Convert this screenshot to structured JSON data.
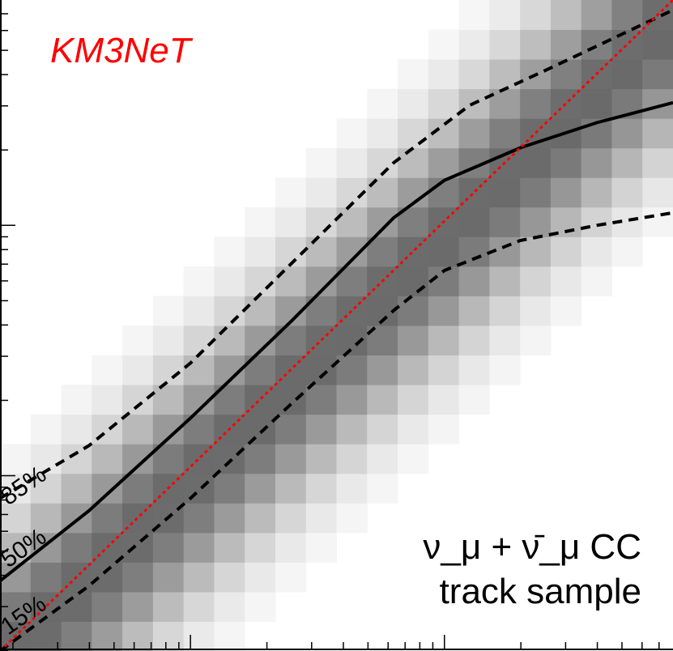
{
  "chart_data": {
    "type": "heatmap",
    "title": "",
    "xlabel": "",
    "ylabel": "",
    "x_scale": "log",
    "y_scale": "log",
    "xlim_log10": [
      0.25,
      2.9
    ],
    "ylim_log10": [
      0.3,
      2.9
    ],
    "heatmap": {
      "description": "2D histogram of reconstructed vs true energy, grayscale intensity 0-1",
      "n_bins_x": 22,
      "n_bins_y": 22,
      "peak_slope": 0.97,
      "peak_offset_log10": 0.01,
      "width_log10": 0.33
    },
    "series": [
      {
        "name": "85%",
        "style": "dashed",
        "color": "#000000",
        "x_log10": [
          0.25,
          0.6,
          1.0,
          1.4,
          1.8,
          2.1,
          2.4,
          2.9
        ],
        "y_log10": [
          0.91,
          1.12,
          1.45,
          1.85,
          2.25,
          2.48,
          2.62,
          2.86
        ]
      },
      {
        "name": "50%",
        "style": "solid",
        "color": "#000000",
        "x_log10": [
          0.25,
          0.6,
          1.0,
          1.4,
          1.8,
          2.0,
          2.3,
          2.6,
          2.9
        ],
        "y_log10": [
          0.58,
          0.86,
          1.23,
          1.62,
          2.03,
          2.18,
          2.31,
          2.41,
          2.49
        ]
      },
      {
        "name": "15%",
        "style": "dashed",
        "color": "#000000",
        "x_log10": [
          0.25,
          0.6,
          1.0,
          1.4,
          1.8,
          2.0,
          2.3,
          2.6,
          2.9
        ],
        "y_log10": [
          0.3,
          0.56,
          0.91,
          1.29,
          1.66,
          1.82,
          1.94,
          2.0,
          2.05
        ]
      },
      {
        "name": "diagonal",
        "style": "dotted",
        "color": "#ff0000",
        "x_log10": [
          0.25,
          2.9
        ],
        "y_log10": [
          0.3,
          2.9
        ]
      }
    ],
    "contour_labels": [
      "85%",
      "50%",
      "15%"
    ],
    "annotations": {
      "brand": "KM3NeT",
      "sample_line1": "ν_μ + ν̄_μ CC",
      "sample_line2": "track sample"
    }
  },
  "colors": {
    "brand": "#ff0000",
    "diagonal": "#ff0000",
    "contour": "#000000"
  }
}
